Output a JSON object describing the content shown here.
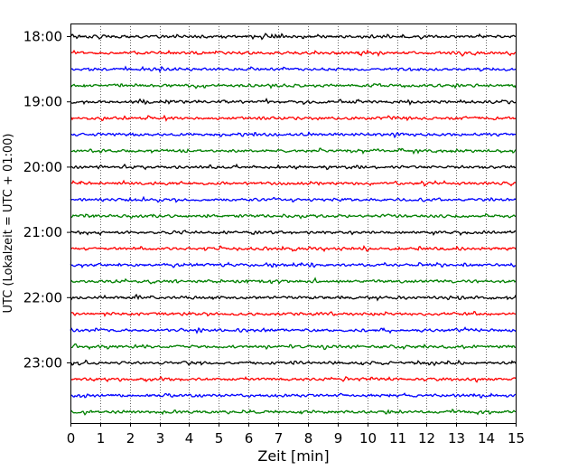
{
  "chart_data": {
    "type": "line",
    "title": "",
    "xlabel": "Zeit  [min]",
    "ylabel": "UTC (Lokalzeit = UTC + 01:00)",
    "xlim": [
      0,
      15
    ],
    "x_ticks": [
      "0",
      "1",
      "2",
      "3",
      "4",
      "5",
      "6",
      "7",
      "8",
      "9",
      "10",
      "11",
      "12",
      "13",
      "14",
      "15"
    ],
    "y_tick_labels": [
      "18:00",
      "19:00",
      "20:00",
      "21:00",
      "22:00",
      "23:00"
    ],
    "start_time_utc": "18:00",
    "trace_interval_min": 15,
    "trace_count": 24,
    "trace_colors": [
      "#000000",
      "#ff0000",
      "#0000ff",
      "#008000"
    ],
    "x_grid": "dotted vertical lines at each minute",
    "legend": "none"
  }
}
